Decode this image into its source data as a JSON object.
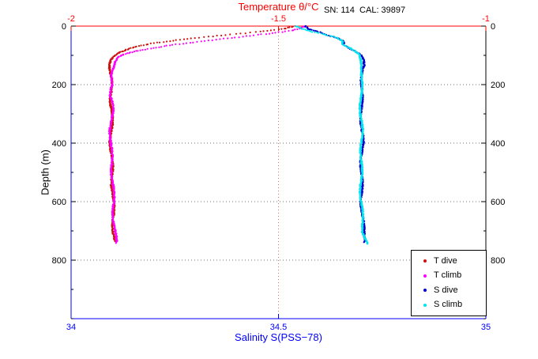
{
  "chart_data": {
    "type": "scatter",
    "title": "Temperature θ/°C",
    "annotation": "SN: 114  CAL: 39897",
    "grid": true,
    "legend_position": "bottom-right",
    "legend_items": [
      "T dive",
      "T climb",
      "S dive",
      "S climb"
    ],
    "axes": {
      "top_x": {
        "label": "Temperature θ/°C",
        "min": -2,
        "max": -1,
        "ticks": [
          -2,
          -1.5,
          -1
        ],
        "tick_labels": [
          "-2",
          "-1.5",
          "-1"
        ],
        "color": "#ff0000"
      },
      "bottom_x": {
        "label": "Salinity S(PSS−78)",
        "min": 34,
        "max": 35,
        "ticks": [
          34,
          34.5,
          35
        ],
        "tick_labels": [
          "34",
          "34.5",
          "35"
        ],
        "color": "#0000ff"
      },
      "y": {
        "label": "Depth (m)",
        "min": 0,
        "max": 1000,
        "direction": "down",
        "ticks": [
          0,
          200,
          400,
          600,
          800
        ],
        "tick_labels": [
          "0",
          "200",
          "400",
          "600",
          "800"
        ],
        "minor_tick_step": 100,
        "color": "#000000"
      }
    },
    "grid_colors": {
      "horizontal": "#444444",
      "vertical": "#cc4444"
    },
    "series": [
      {
        "name": "T dive",
        "axis": "temperature",
        "color": "#cc1111",
        "marker": "dot",
        "points": [
          [
            0,
            -1.46
          ],
          [
            10,
            -1.49
          ],
          [
            20,
            -1.55
          ],
          [
            30,
            -1.63
          ],
          [
            40,
            -1.7
          ],
          [
            50,
            -1.76
          ],
          [
            60,
            -1.81
          ],
          [
            70,
            -1.845
          ],
          [
            80,
            -1.865
          ],
          [
            90,
            -1.88
          ],
          [
            100,
            -1.892
          ],
          [
            115,
            -1.901
          ],
          [
            130,
            -1.906
          ],
          [
            150,
            -1.908
          ],
          [
            180,
            -1.905
          ],
          [
            220,
            -1.902
          ],
          [
            260,
            -1.903
          ],
          [
            300,
            -1.902
          ],
          [
            350,
            -1.903
          ],
          [
            400,
            -1.904
          ],
          [
            450,
            -1.903
          ],
          [
            500,
            -1.901
          ],
          [
            550,
            -1.9
          ],
          [
            600,
            -1.899
          ],
          [
            650,
            -1.898
          ],
          [
            700,
            -1.897
          ],
          [
            735,
            -1.896
          ]
        ]
      },
      {
        "name": "T climb",
        "axis": "temperature",
        "color": "#ff00ff",
        "marker": "dot",
        "points": [
          [
            0,
            -1.44
          ],
          [
            8,
            -1.45
          ],
          [
            15,
            -1.47
          ],
          [
            25,
            -1.52
          ],
          [
            35,
            -1.58
          ],
          [
            45,
            -1.64
          ],
          [
            55,
            -1.7
          ],
          [
            65,
            -1.755
          ],
          [
            75,
            -1.8
          ],
          [
            85,
            -1.84
          ],
          [
            95,
            -1.87
          ],
          [
            105,
            -1.885
          ],
          [
            120,
            -1.895
          ],
          [
            140,
            -1.9
          ],
          [
            165,
            -1.905
          ],
          [
            200,
            -1.898
          ],
          [
            235,
            -1.905
          ],
          [
            270,
            -1.9
          ],
          [
            310,
            -1.903
          ],
          [
            360,
            -1.904
          ],
          [
            410,
            -1.905
          ],
          [
            460,
            -1.902
          ],
          [
            510,
            -1.9
          ],
          [
            560,
            -1.899
          ],
          [
            610,
            -1.898
          ],
          [
            660,
            -1.897
          ],
          [
            705,
            -1.895
          ],
          [
            742,
            -1.892
          ]
        ]
      },
      {
        "name": "S dive",
        "axis": "salinity",
        "color": "#0000cc",
        "marker": "dot",
        "points": [
          [
            0,
            34.565
          ],
          [
            10,
            34.575
          ],
          [
            20,
            34.6
          ],
          [
            28,
            34.615
          ],
          [
            35,
            34.63
          ],
          [
            42,
            34.647
          ],
          [
            50,
            34.657
          ],
          [
            57,
            34.66
          ],
          [
            63,
            34.654
          ],
          [
            70,
            34.664
          ],
          [
            78,
            34.672
          ],
          [
            85,
            34.681
          ],
          [
            92,
            34.69
          ],
          [
            100,
            34.697
          ],
          [
            115,
            34.703
          ],
          [
            135,
            34.706
          ],
          [
            160,
            34.703
          ],
          [
            200,
            34.701
          ],
          [
            250,
            34.7
          ],
          [
            300,
            34.7
          ],
          [
            350,
            34.701
          ],
          [
            400,
            34.702
          ],
          [
            450,
            34.701
          ],
          [
            500,
            34.7
          ],
          [
            550,
            34.7
          ],
          [
            600,
            34.701
          ],
          [
            650,
            34.702
          ],
          [
            700,
            34.705
          ],
          [
            738,
            34.71
          ]
        ]
      },
      {
        "name": "S climb",
        "axis": "salinity",
        "color": "#00e5ee",
        "marker": "dot",
        "points": [
          [
            0,
            34.545
          ],
          [
            10,
            34.56
          ],
          [
            20,
            34.585
          ],
          [
            30,
            34.615
          ],
          [
            38,
            34.635
          ],
          [
            46,
            34.647
          ],
          [
            53,
            34.653
          ],
          [
            60,
            34.649
          ],
          [
            68,
            34.66
          ],
          [
            76,
            34.671
          ],
          [
            84,
            34.681
          ],
          [
            92,
            34.69
          ],
          [
            100,
            34.696
          ],
          [
            115,
            34.7
          ],
          [
            135,
            34.703
          ],
          [
            160,
            34.701
          ],
          [
            200,
            34.699
          ],
          [
            250,
            34.699
          ],
          [
            300,
            34.699
          ],
          [
            350,
            34.7
          ],
          [
            400,
            34.701
          ],
          [
            450,
            34.7
          ],
          [
            500,
            34.699
          ],
          [
            550,
            34.699
          ],
          [
            600,
            34.7
          ],
          [
            650,
            34.701
          ],
          [
            700,
            34.704
          ],
          [
            745,
            34.716
          ]
        ]
      }
    ]
  }
}
